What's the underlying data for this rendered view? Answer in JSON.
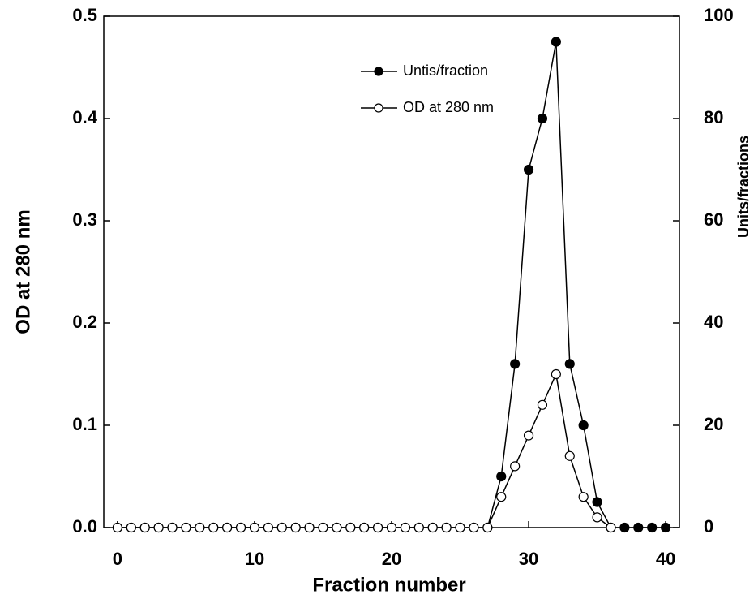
{
  "chart_data": {
    "type": "line",
    "x_label": "Fraction number",
    "y_label": "OD at 280 nm",
    "y2_label": "Units/fractions",
    "x": [
      0,
      1,
      2,
      3,
      4,
      5,
      6,
      7,
      8,
      9,
      10,
      11,
      12,
      13,
      14,
      15,
      16,
      17,
      18,
      19,
      20,
      21,
      22,
      23,
      24,
      25,
      26,
      27,
      28,
      29,
      30,
      31,
      32,
      33,
      34,
      35,
      36,
      37,
      38,
      39,
      40
    ],
    "series": [
      {
        "name": "Untis/fraction",
        "color": "#000000",
        "marker_fill": "#000000",
        "axis": "y2",
        "values": [
          0,
          0,
          0,
          0,
          0,
          0,
          0,
          0,
          0,
          0,
          0,
          0,
          0,
          0,
          0,
          0,
          0,
          0,
          0,
          0,
          0,
          0,
          0,
          0,
          0,
          0,
          0,
          0,
          10,
          32,
          70,
          80,
          95,
          32,
          20,
          5,
          0,
          0,
          0,
          0,
          0
        ]
      },
      {
        "name": "OD at 280 nm",
        "color": "#000000",
        "marker_fill": "#ffffff",
        "axis": "y",
        "values": [
          0,
          0,
          0,
          0,
          0,
          0,
          0,
          0,
          0,
          0,
          0,
          0,
          0,
          0,
          0,
          0,
          0,
          0,
          0,
          0,
          0,
          0,
          0,
          0,
          0,
          0,
          0,
          0,
          0.03,
          0.06,
          0.09,
          0.12,
          0.15,
          0.07,
          0.03,
          0.01,
          0,
          null,
          null,
          null,
          null
        ]
      }
    ],
    "xlim": [
      -1,
      41
    ],
    "xticks": [
      0,
      10,
      20,
      30,
      40
    ],
    "ylim": [
      0,
      0.5
    ],
    "yticks": [
      {
        "value": 0,
        "label": "0.0"
      },
      0.1,
      0.2,
      0.3,
      0.4,
      0.5
    ],
    "y2lim": [
      0,
      100
    ],
    "y2ticks": [
      0,
      20,
      40,
      60,
      80,
      100
    ]
  }
}
